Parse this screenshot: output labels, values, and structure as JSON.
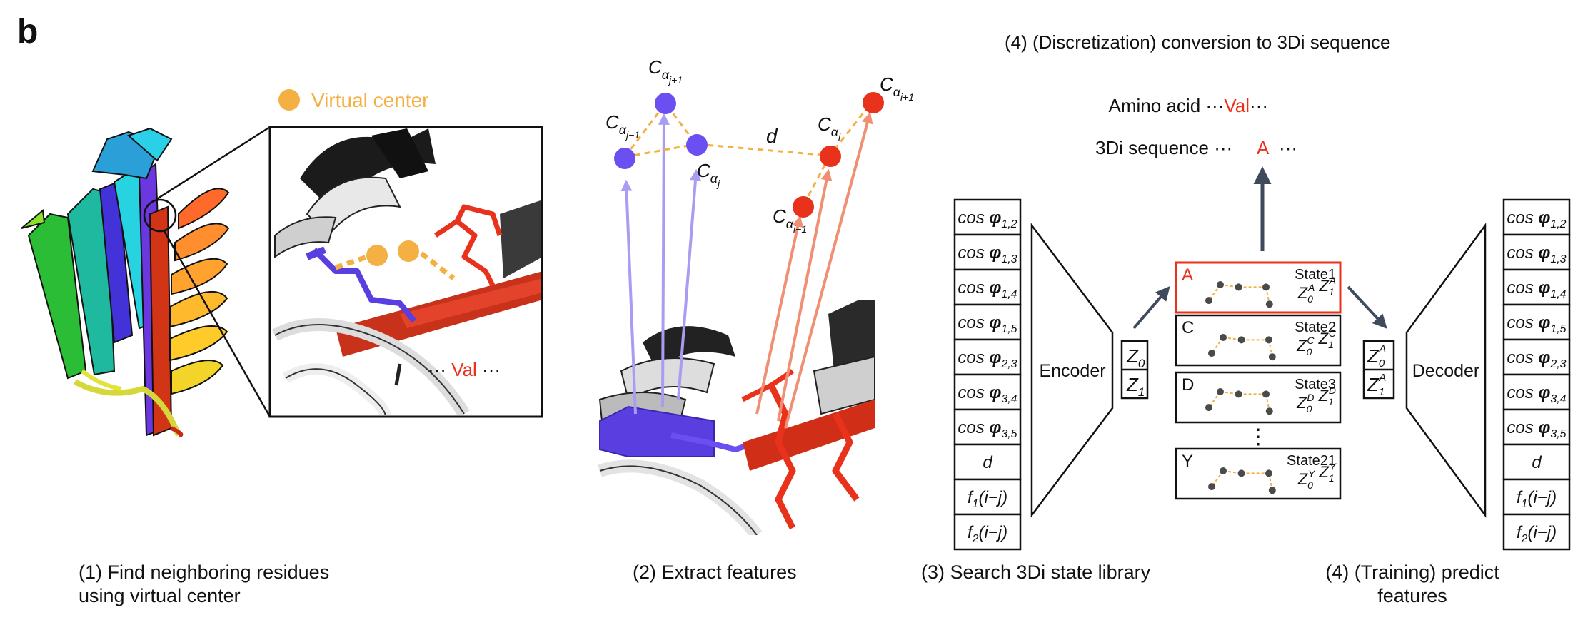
{
  "panel_label": "b",
  "step1": {
    "legend_label": "Virtual center",
    "residue_label": "··· Val ···",
    "caption_line1": "(1) Find neighboring residues",
    "caption_line2": "using virtual center"
  },
  "step2": {
    "distance_label": "d",
    "caption": "(2) Extract features"
  },
  "step3": {
    "encoder_label": "Encoder",
    "latent": [
      "Z0",
      "Z1"
    ],
    "states": [
      {
        "letter": "A",
        "name": "State1",
        "z": "Z0^A Z1^A"
      },
      {
        "letter": "C",
        "name": "State2",
        "z": "Z0^C Z1^C"
      },
      {
        "letter": "D",
        "name": "State3",
        "z": "Z0^D Z1^D"
      },
      {
        "letter": "Y",
        "name": "State21",
        "z": "Z0^Y Z1^Y"
      }
    ],
    "ellipsis": "⋮",
    "caption": "(3) Search 3Di state library"
  },
  "step4": {
    "title": "(4) (Discretization) conversion to 3Di sequence",
    "amino_prefix": "Amino acid ···",
    "amino_value": "Val",
    "amino_suffix": "···",
    "seq_prefix": "3Di sequence ···",
    "seq_value": "A",
    "seq_suffix": "···",
    "decoder_label": "Decoder",
    "latent_out": [
      "Z0^A",
      "Z1^A"
    ],
    "caption_line1": "(4) (Training) predict",
    "caption_line2": "features"
  },
  "features": [
    "cos φ1,2",
    "cos φ1,3",
    "cos φ1,4",
    "cos φ1,5",
    "cos φ2,3",
    "cos φ3,4",
    "cos φ3,5",
    "d",
    "f1(i−j)",
    "f2(i−j)"
  ],
  "colors": {
    "accent_red": "#e8321c",
    "virtual_center": "#f5b043",
    "purple_node": "#6b4ff0",
    "arrow_dark": "#3f4a5c",
    "arrow_purple": "#a99df2",
    "arrow_salmon": "#f08f73"
  }
}
